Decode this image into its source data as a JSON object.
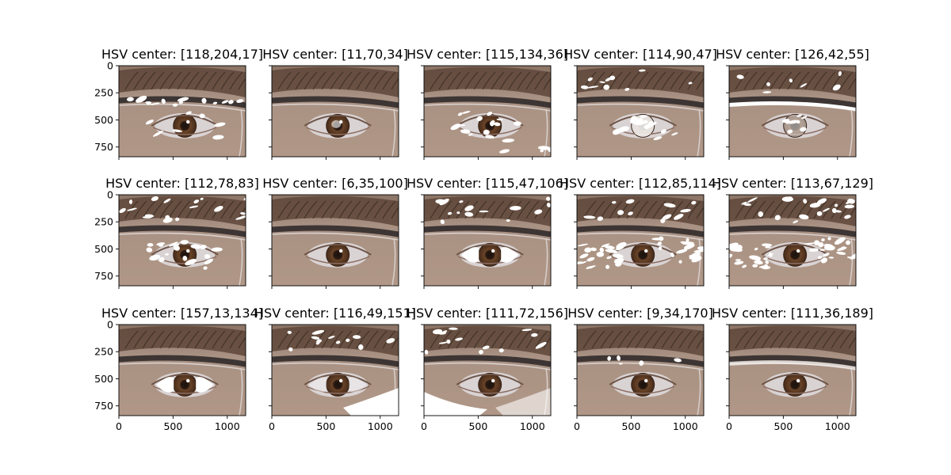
{
  "chart_data": {
    "type": "image-grid",
    "rows": 3,
    "cols": 5,
    "sharex": true,
    "sharey": true,
    "x_ticks": [
      0,
      500,
      1000
    ],
    "y_ticks": [
      0,
      250,
      500,
      750
    ],
    "xlim": [
      0,
      1170
    ],
    "ylim": [
      840,
      0
    ],
    "panels": [
      {
        "title": "HSV center: [118,204,17]"
      },
      {
        "title": "HSV center: [11,70,34]"
      },
      {
        "title": "HSV center: [115,134,36]"
      },
      {
        "title": "HSV center: [114,90,47]"
      },
      {
        "title": "HSV center: [126,42,55]"
      },
      {
        "title": "HSV center: [112,78,83]"
      },
      {
        "title": "HSV center: [6,35,100]"
      },
      {
        "title": "HSV center: [115,47,106]"
      },
      {
        "title": "HSV center: [112,85,114]"
      },
      {
        "title": "HSV center: [113,67,129]"
      },
      {
        "title": "HSV center: [157,13,134]"
      },
      {
        "title": "HSV center: [116,49,151]"
      },
      {
        "title": "HSV center: [111,72,156]"
      },
      {
        "title": "HSV center: [9,34,170]"
      },
      {
        "title": "HSV center: [111,36,189]"
      }
    ]
  },
  "colors": {
    "skin": "#a98f7f",
    "brow": "#5e4739",
    "frame": "#3c3534",
    "iris": "#5a3a24",
    "mask": "#ffffff"
  }
}
